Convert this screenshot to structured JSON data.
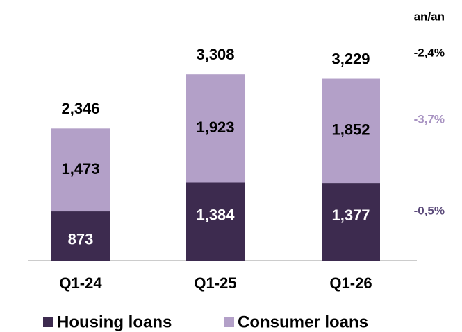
{
  "chart_data": {
    "type": "stacked_bar",
    "categories": [
      "Q1-24",
      "Q1-25",
      "Q1-26"
    ],
    "series": [
      {
        "name": "Housing loans",
        "color": "#3d2b4f",
        "values": [
          873,
          1384,
          1377
        ],
        "value_labels": [
          "873",
          "1,384",
          "1,377"
        ]
      },
      {
        "name": "Consumer loans",
        "color": "#b3a0c8",
        "values": [
          1473,
          1923,
          1852
        ],
        "value_labels": [
          "1,473",
          "1,923",
          "1,852"
        ]
      }
    ],
    "totals": [
      2346,
      3308,
      3229
    ],
    "total_labels": [
      "2,346",
      "3,308",
      "3,229"
    ],
    "change_header": "an/an",
    "change_labels": [
      "-2,4%",
      "-3,7%",
      "-0,5%"
    ],
    "change_colors": [
      "#000000",
      "#a893c2",
      "#5b4a7a"
    ],
    "ylim": [
      0,
      3500
    ]
  }
}
